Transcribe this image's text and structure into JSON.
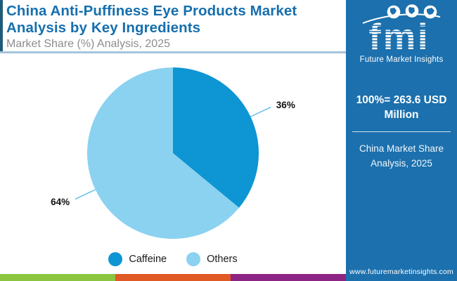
{
  "header": {
    "title": "China Anti-Puffiness Eye Products Market Analysis by Key Ingredients",
    "subtitle": "Market Share (%) Analysis, 2025"
  },
  "chart_data": {
    "type": "pie",
    "title": "China Anti-Puffiness Eye Products Market Analysis by Key Ingredients",
    "subtitle": "Market Share (%) Analysis, 2025",
    "labels": [
      "Caffeine",
      "Others"
    ],
    "values": [
      36,
      64
    ],
    "value_labels": [
      "36%",
      "64%"
    ],
    "colors": [
      "#0e95d3",
      "#8bd2f0"
    ],
    "leader_line_color": "#54b9e8",
    "legend_position": "bottom",
    "start_angle_deg": 0,
    "direction": "clockwise"
  },
  "sidebar": {
    "logo": {
      "brand": "fmi",
      "tagline": "Future Market Insights"
    },
    "stat_line": "100%= 263.6 USD Million",
    "caption": "China Market Share Analysis, 2025",
    "website": "www.futuremarketinsights.com"
  },
  "footer": {
    "bar_colors": [
      "#8bc53f",
      "#e05a26",
      "#8d2585"
    ]
  },
  "colors": {
    "title_blue": "#156fae",
    "subtitle_gray": "#8d8d8d",
    "accent_bar": "#1f5b78",
    "divider": "#a6c4dc",
    "sidebar_blue": "#1c70ad",
    "pie_dark": "#0e95d3",
    "pie_light": "#8bd2f0"
  }
}
